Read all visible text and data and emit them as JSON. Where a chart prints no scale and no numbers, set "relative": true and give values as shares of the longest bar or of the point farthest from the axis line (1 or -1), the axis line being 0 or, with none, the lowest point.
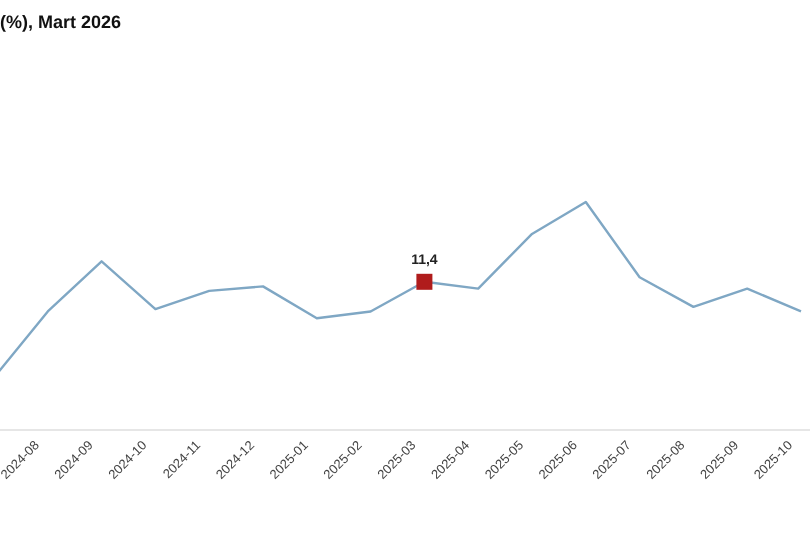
{
  "chart_data": {
    "type": "line",
    "title": "(%), Mart 2026",
    "relative": true,
    "categories": [
      null,
      "2024-08",
      "2024-09",
      "2024-10",
      "2024-11",
      "2024-12",
      "2025-01",
      "2025-02",
      "2025-03",
      "2025-04",
      "2025-05",
      "2025-06",
      "2025-07",
      "2025-08",
      "2025-09",
      "2025-10"
    ],
    "series": [
      {
        "color": "#7fa7c4",
        "values": [
          0.23,
          0.52,
          0.74,
          0.53,
          0.61,
          0.63,
          0.49,
          0.52,
          0.65,
          0.62,
          0.86,
          1,
          0.67,
          0.54,
          0.62,
          0.52
        ]
      }
    ],
    "annotations": [
      {
        "text": "11,4",
        "x": "2025-03",
        "y": 0.65
      }
    ]
  }
}
